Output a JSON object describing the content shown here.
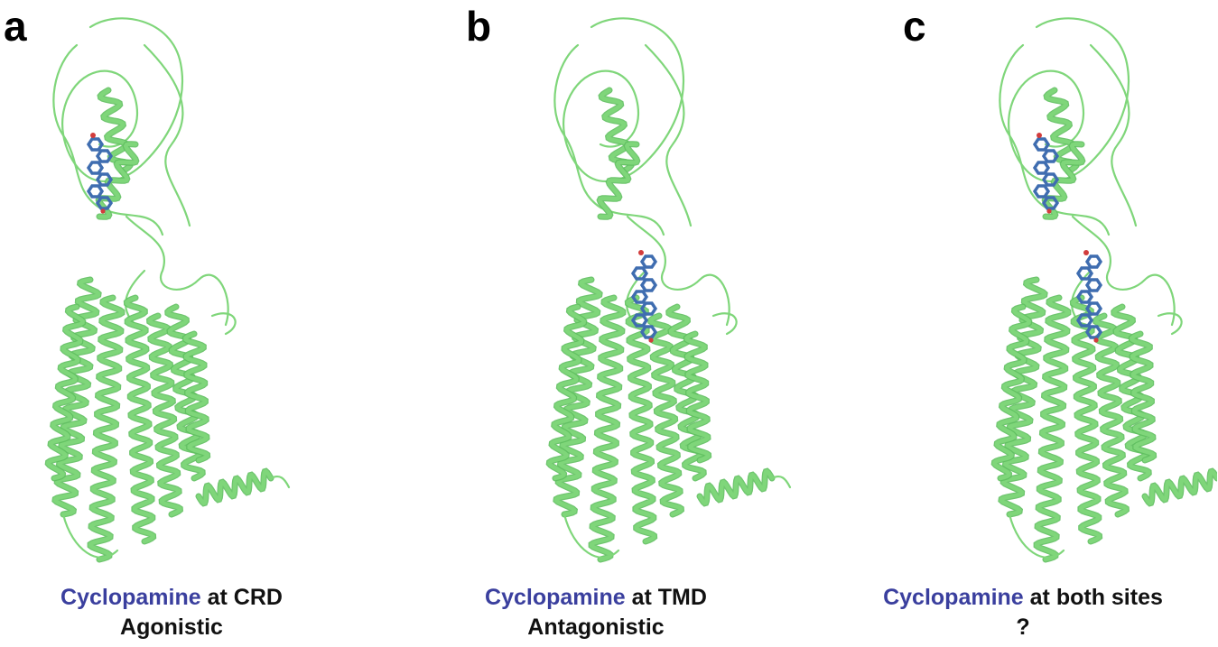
{
  "colors": {
    "protein": "#7fd67a",
    "protein_dark": "#5fbf5f",
    "ligand": "#3f6db0",
    "ligand_dark": "#24457a",
    "oxygen": "#d23c3c",
    "drug_text": "#3a3f9e"
  },
  "panels": [
    {
      "letter": "a",
      "drug": "Cyclopamine",
      "site": " at CRD",
      "effect": "Agonistic"
    },
    {
      "letter": "b",
      "drug": "Cyclopamine",
      "site": " at TMD",
      "effect": "Antagonistic"
    },
    {
      "letter": "c",
      "drug": "Cyclopamine",
      "site": " at both sites",
      "effect": "?"
    }
  ]
}
